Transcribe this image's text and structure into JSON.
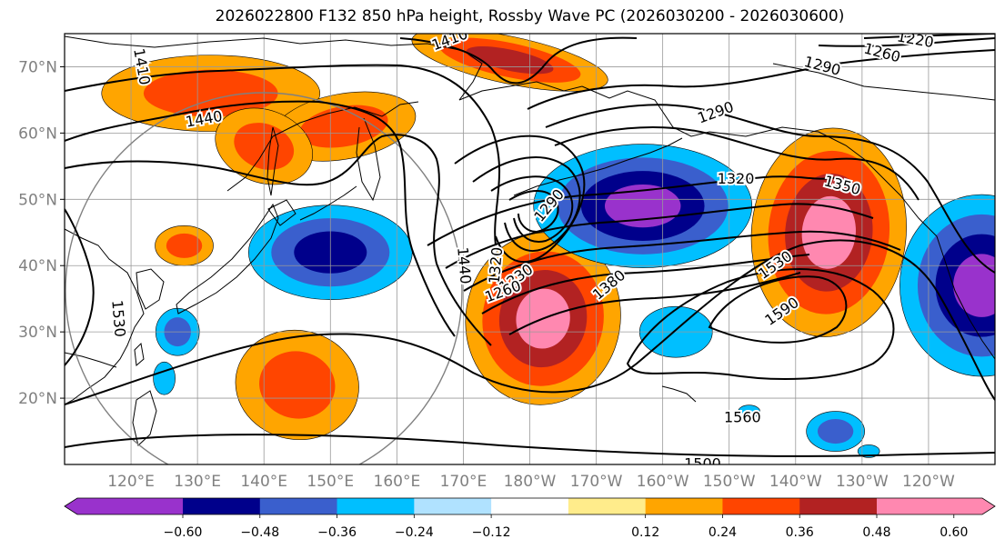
{
  "title": "2026022800 F132 850 hPa height, Rossby Wave PC (2026030200 - 2026030600)",
  "lat_labels": [
    "70°N",
    "60°N",
    "50°N",
    "40°N",
    "30°N",
    "20°N"
  ],
  "lat_values": [
    70,
    60,
    50,
    40,
    30,
    20
  ],
  "lon_labels": [
    "120°E",
    "130°E",
    "140°E",
    "150°E",
    "160°E",
    "170°E",
    "180°W",
    "170°W",
    "160°W",
    "150°W",
    "140°W",
    "130°W",
    "120°W"
  ],
  "colorbar": {
    "colors": [
      "#9932cc",
      "#00008b",
      "#3a5fcd",
      "#00bfff",
      "#b0e2ff",
      "#ffffff",
      "#ffec8b",
      "#ffa500",
      "#ff4500",
      "#b22222",
      "#ff88b0"
    ],
    "tick_labels": [
      "−0.60",
      "−0.48",
      "−0.36",
      "−0.24",
      "−0.12",
      "0.12",
      "0.24",
      "0.36",
      "0.48",
      "0.60"
    ]
  },
  "contour_labels": [
    {
      "text": "1410",
      "lon": 121.5,
      "lat": 70,
      "rot": 80
    },
    {
      "text": "1440",
      "lon": 131,
      "lat": 62,
      "rot": -10
    },
    {
      "text": "1530",
      "lon": 118,
      "lat": 32,
      "rot": 85
    },
    {
      "text": "1440",
      "lon": 170,
      "lat": 40,
      "rot": 85
    },
    {
      "text": "1320",
      "lon": 175,
      "lat": 40,
      "rot": -85
    },
    {
      "text": "1230",
      "lon": 178,
      "lat": 38,
      "rot": -35
    },
    {
      "text": "1260",
      "lon": 176,
      "lat": 36,
      "rot": -20
    },
    {
      "text": "1290",
      "lon": 183,
      "lat": 49,
      "rot": -50
    },
    {
      "text": "1380",
      "lon": 192,
      "lat": 37,
      "rot": -40
    },
    {
      "text": "1290",
      "lon": 208,
      "lat": 63,
      "rot": -20
    },
    {
      "text": "1290",
      "lon": 224,
      "lat": 70,
      "rot": 15
    },
    {
      "text": "1260",
      "lon": 233,
      "lat": 72,
      "rot": 15
    },
    {
      "text": "1220",
      "lon": 238,
      "lat": 74,
      "rot": 10
    },
    {
      "text": "1320",
      "lon": 211,
      "lat": 53,
      "rot": 0
    },
    {
      "text": "1350",
      "lon": 227,
      "lat": 52,
      "rot": 15
    },
    {
      "text": "1530",
      "lon": 217,
      "lat": 40,
      "rot": -35
    },
    {
      "text": "1590",
      "lon": 218,
      "lat": 33,
      "rot": -35
    },
    {
      "text": "1560",
      "lon": 212,
      "lat": 17,
      "rot": 0
    },
    {
      "text": "1500",
      "lon": 206,
      "lat": 10,
      "rot": 0
    },
    {
      "text": "1410",
      "lon": 168,
      "lat": 74,
      "rot": -20
    }
  ],
  "fill_blobs": [
    {
      "lon": 132,
      "lat": 66,
      "rx": 120,
      "ry": 42,
      "rot": 0,
      "levels": [
        "#ffa500",
        "#ff4500"
      ]
    },
    {
      "lon": 152,
      "lat": 61,
      "rx": 80,
      "ry": 36,
      "rot": -10,
      "levels": [
        "#ffa500",
        "#ff4500"
      ]
    },
    {
      "lon": 140,
      "lat": 58,
      "rx": 55,
      "ry": 40,
      "rot": 20,
      "levels": [
        "#ffa500",
        "#ff4500"
      ]
    },
    {
      "lon": 177,
      "lat": 71,
      "rx": 110,
      "ry": 26,
      "rot": 12,
      "levels": [
        "#ffa500",
        "#ff4500",
        "#b22222"
      ]
    },
    {
      "lon": 128,
      "lat": 43,
      "rx": 32,
      "ry": 22,
      "rot": 0,
      "levels": [
        "#ffa500",
        "#ff4500"
      ]
    },
    {
      "lon": 150,
      "lat": 42,
      "rx": 90,
      "ry": 52,
      "rot": 0,
      "levels": [
        "#00bfff",
        "#3a5fcd",
        "#00008b"
      ]
    },
    {
      "lon": 145,
      "lat": 22,
      "rx": 68,
      "ry": 60,
      "rot": 10,
      "levels": [
        "#ffa500",
        "#ff4500"
      ]
    },
    {
      "lon": 127,
      "lat": 30,
      "rx": 24,
      "ry": 26,
      "rot": 0,
      "levels": [
        "#00bfff",
        "#3a5fcd"
      ]
    },
    {
      "lon": 125,
      "lat": 23,
      "rx": 12,
      "ry": 18,
      "rot": 0,
      "levels": [
        "#00bfff"
      ]
    },
    {
      "lon": 182,
      "lat": 32,
      "rx": 85,
      "ry": 95,
      "rot": 10,
      "levels": [
        "#ffa500",
        "#ff4500",
        "#b22222",
        "#ff88b0"
      ]
    },
    {
      "lon": 197,
      "lat": 49,
      "rx": 120,
      "ry": 68,
      "rot": 0,
      "levels": [
        "#00bfff",
        "#3a5fcd",
        "#00008b",
        "#9932cc"
      ]
    },
    {
      "lon": 225,
      "lat": 45,
      "rx": 85,
      "ry": 115,
      "rot": 5,
      "levels": [
        "#ffa500",
        "#ff4500",
        "#b22222",
        "#ff88b0"
      ]
    },
    {
      "lon": 202,
      "lat": 30,
      "rx": 40,
      "ry": 28,
      "rot": 0,
      "levels": [
        "#00bfff"
      ]
    },
    {
      "lon": 213,
      "lat": 18,
      "rx": 12,
      "ry": 7,
      "rot": 0,
      "levels": [
        "#00bfff"
      ]
    },
    {
      "lon": 226,
      "lat": 15,
      "rx": 32,
      "ry": 22,
      "rot": 0,
      "levels": [
        "#00bfff",
        "#3a5fcd"
      ]
    },
    {
      "lon": 231,
      "lat": 12,
      "rx": 12,
      "ry": 7,
      "rot": 0,
      "levels": [
        "#00bfff"
      ]
    },
    {
      "lon": 248,
      "lat": 37,
      "rx": 90,
      "ry": 100,
      "rot": 0,
      "levels": [
        "#00bfff",
        "#3a5fcd",
        "#00008b",
        "#9932cc"
      ]
    }
  ],
  "colors": {
    "contour": "#000000",
    "grid": "#999999",
    "coast": "#000000",
    "circle": "#808080"
  }
}
